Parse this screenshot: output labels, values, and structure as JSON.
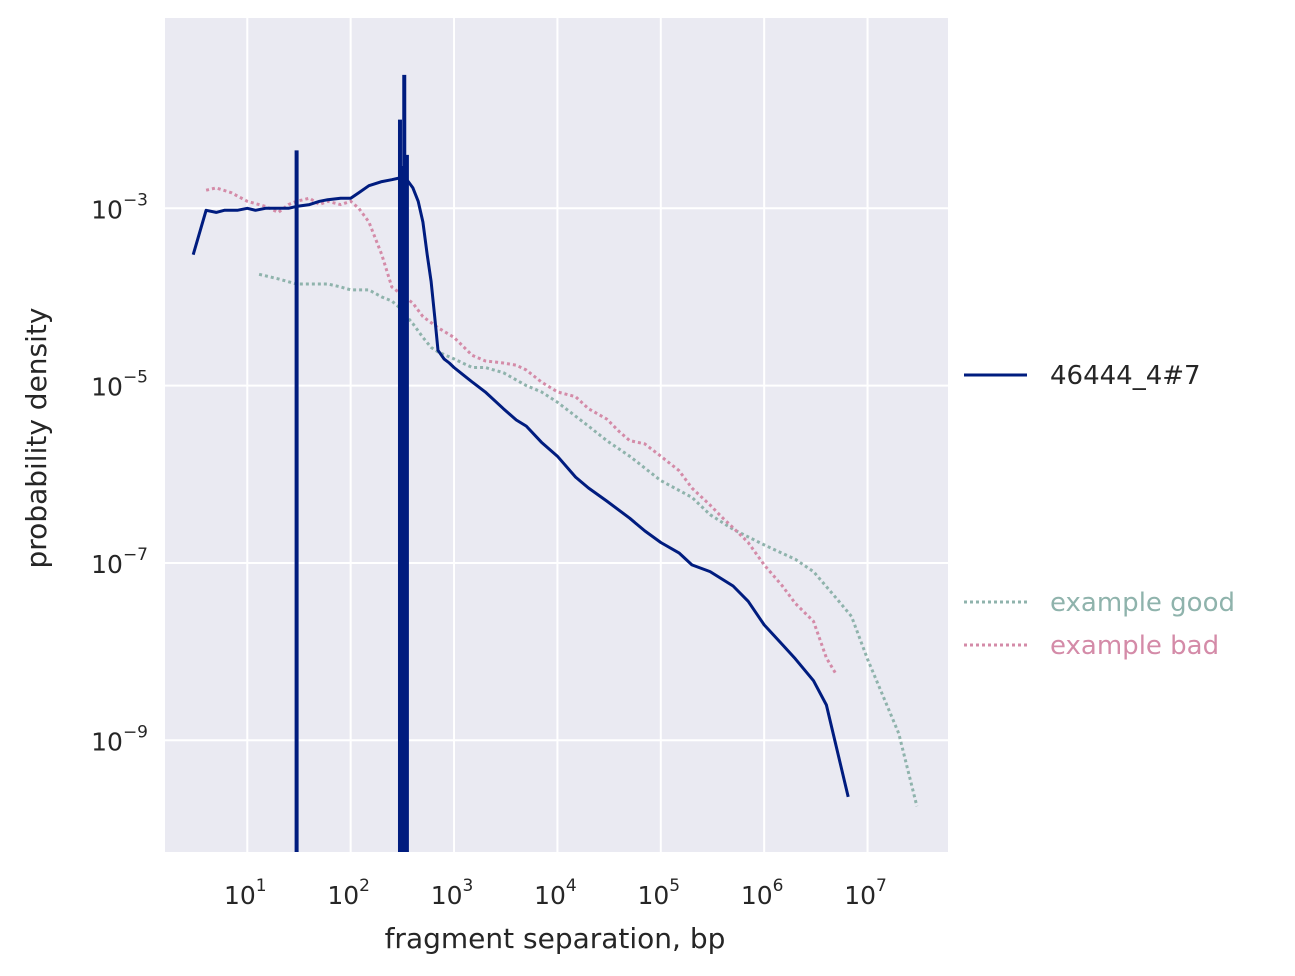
{
  "chart_data": {
    "type": "line",
    "xlabel": "fragment separation, bp",
    "ylabel": "probability density",
    "xscale": "log",
    "yscale": "log",
    "xlim": [
      1.6,
      60000000
    ],
    "ylim": [
      5.5e-11,
      0.14
    ],
    "xticks": [
      {
        "base": "10",
        "exp": "1",
        "value": 10
      },
      {
        "base": "10",
        "exp": "2",
        "value": 100
      },
      {
        "base": "10",
        "exp": "3",
        "value": 1000
      },
      {
        "base": "10",
        "exp": "4",
        "value": 10000
      },
      {
        "base": "10",
        "exp": "5",
        "value": 100000
      },
      {
        "base": "10",
        "exp": "6",
        "value": 1000000
      },
      {
        "base": "10",
        "exp": "7",
        "value": 10000000
      }
    ],
    "yticks": [
      {
        "base": "10",
        "exp": "−3",
        "value": 0.001
      },
      {
        "base": "10",
        "exp": "−5",
        "value": 1e-05
      },
      {
        "base": "10",
        "exp": "−7",
        "value": 1e-07
      },
      {
        "base": "10",
        "exp": "−9",
        "value": 1e-09
      }
    ],
    "grid": true,
    "background": "#eaeaf2",
    "legend_placement": "right",
    "series": [
      {
        "name": "46444_4#7",
        "color": "#001c7f",
        "style": "solid",
        "x": [
          3,
          4,
          5,
          6,
          8,
          10,
          12,
          15,
          20,
          25,
          30,
          40,
          50,
          60,
          80,
          100,
          120,
          150,
          200,
          250,
          300,
          350,
          400,
          450,
          500,
          550,
          600,
          650,
          700,
          800,
          900,
          1000,
          1200,
          1500,
          2000,
          3000,
          4000,
          5000,
          7000,
          10000,
          15000,
          20000,
          30000,
          50000,
          70000,
          100000,
          150000,
          200000,
          300000,
          500000,
          700000,
          1000000,
          1500000,
          2000000,
          3000000,
          4000000,
          6500000
        ],
        "y": [
          0.0003,
          0.00095,
          0.0009,
          0.00095,
          0.00095,
          0.001,
          0.00095,
          0.001,
          0.001,
          0.001,
          0.00105,
          0.0011,
          0.0012,
          0.00125,
          0.0013,
          0.0013,
          0.0015,
          0.0018,
          0.002,
          0.0021,
          0.0022,
          0.0021,
          0.0017,
          0.0012,
          0.0007,
          0.0003,
          0.00015,
          6e-05,
          2.5e-05,
          2e-05,
          1.8e-05,
          1.6e-05,
          1.35e-05,
          1.1e-05,
          8.5e-06,
          5.5e-06,
          4.1e-06,
          3.5e-06,
          2.3e-06,
          1.6e-06,
          9.3e-07,
          7e-07,
          5e-07,
          3.2e-07,
          2.3e-07,
          1.7e-07,
          1.3e-07,
          9.5e-08,
          8e-08,
          5.5e-08,
          3.7e-08,
          2e-08,
          1.2e-08,
          8.3e-09,
          4.7e-09,
          2.5e-09,
          2.3e-10
        ]
      },
      {
        "name": "example good",
        "color": "#8fb3ac",
        "style": "dotted",
        "x": [
          13,
          20,
          30,
          40,
          60,
          80,
          100,
          120,
          150,
          200,
          250,
          300,
          350,
          400,
          500,
          600,
          700,
          1000,
          1500,
          2000,
          3000,
          5000,
          7000,
          10000,
          20000,
          30000,
          50000,
          100000,
          200000,
          300000,
          500000,
          1000000,
          2000000,
          3000000,
          5000000,
          7000000,
          10000000,
          20000000,
          30000000
        ],
        "y": [
          0.00018,
          0.00016,
          0.00014,
          0.00014,
          0.00014,
          0.00013,
          0.00012,
          0.00012,
          0.00012,
          0.0001,
          9e-05,
          7.5e-05,
          6e-05,
          5e-05,
          3.5e-05,
          2.7e-05,
          2.4e-05,
          2e-05,
          1.6e-05,
          1.6e-05,
          1.4e-05,
          1e-05,
          8.5e-06,
          6.5e-06,
          3.5e-06,
          2.4e-06,
          1.6e-06,
          8.5e-07,
          5.5e-07,
          3.5e-07,
          2.4e-07,
          1.6e-07,
          1.1e-07,
          8e-08,
          4e-08,
          2.5e-08,
          8.2e-09,
          1.2e-09,
          1.8e-10
        ]
      },
      {
        "name": "example bad",
        "color": "#d48ba8",
        "style": "dotted",
        "x": [
          4,
          5,
          7,
          10,
          15,
          20,
          25,
          30,
          40,
          50,
          60,
          80,
          100,
          120,
          150,
          200,
          250,
          300,
          400,
          500,
          700,
          1000,
          1500,
          2000,
          3000,
          4000,
          5000,
          7000,
          10000,
          15000,
          20000,
          30000,
          40000,
          50000,
          70000,
          100000,
          150000,
          200000,
          300000,
          400000,
          500000,
          700000,
          1000000,
          1500000,
          2000000,
          3000000,
          4000000,
          5000000
        ],
        "y": [
          0.0016,
          0.0017,
          0.0015,
          0.0012,
          0.00105,
          0.0009,
          0.0011,
          0.0012,
          0.0013,
          0.0011,
          0.0012,
          0.0011,
          0.0012,
          0.001,
          0.0007,
          0.0003,
          0.00013,
          0.00011,
          8.5e-05,
          6e-05,
          4.5e-05,
          3.5e-05,
          2.2e-05,
          1.9e-05,
          1.8e-05,
          1.7e-05,
          1.5e-05,
          1.1e-05,
          8.5e-06,
          7.5e-06,
          5.5e-06,
          4.2e-06,
          3e-06,
          2.4e-06,
          2.2e-06,
          1.6e-06,
          1.1e-06,
          7e-07,
          4.5e-07,
          3.2e-07,
          2.5e-07,
          1.7e-07,
          9.5e-08,
          5.5e-08,
          3.5e-08,
          2.2e-08,
          8.5e-09,
          5.5e-09
        ]
      }
    ],
    "spikes": [
      {
        "series": "46444_4#7",
        "x": 30,
        "ymax": 0.0045
      },
      {
        "series": "46444_4#7",
        "x": 300,
        "ymax": 0.01
      },
      {
        "series": "46444_4#7",
        "x": 310,
        "ymax": 0.0025
      },
      {
        "series": "46444_4#7",
        "x": 320,
        "ymax": 0.003
      },
      {
        "series": "46444_4#7",
        "x": 330,
        "ymax": 0.032
      },
      {
        "series": "46444_4#7",
        "x": 340,
        "ymax": 0.0022
      },
      {
        "series": "46444_4#7",
        "x": 350,
        "ymax": 0.004
      }
    ]
  }
}
